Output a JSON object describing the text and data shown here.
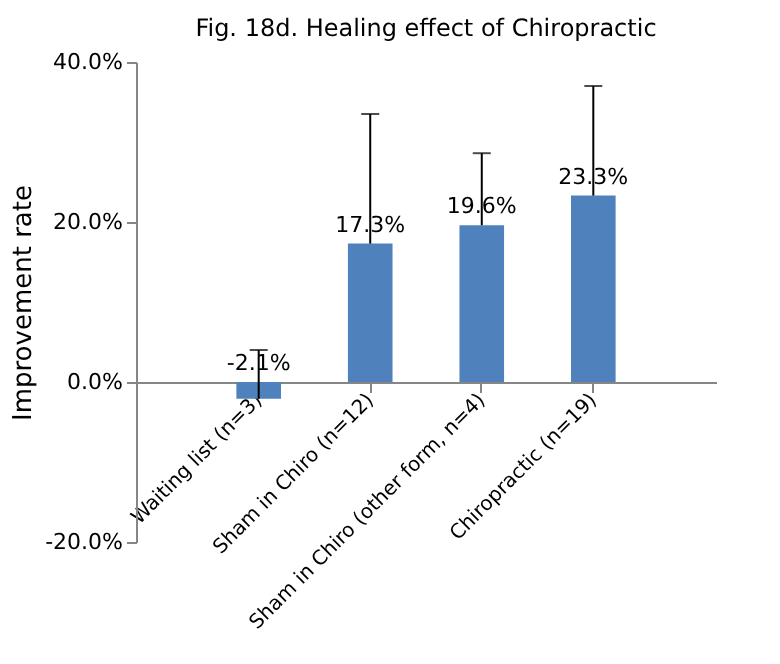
{
  "chart_data": {
    "type": "bar",
    "title": "Fig. 18d. Healing effect of Chiropractic",
    "ylabel": "Improvement rate",
    "categories": [
      "Waiting list (n=3)",
      "Sham in Chiro (n=12)",
      "Sham in Chiro  (other form, n=4)",
      "Chiropractic (n=19)"
    ],
    "values": [
      -2.1,
      17.3,
      19.6,
      23.3
    ],
    "color": "#4f81bd",
    "errors": [
      [
        -2.1,
        4.0
      ],
      [
        17.3,
        33.5
      ],
      [
        19.6,
        28.6
      ],
      [
        23.3,
        37.0
      ]
    ],
    "value_labels": [
      "-2.1%",
      "17.3%",
      "19.6%",
      "23.3%"
    ],
    "ylim": [
      -20,
      40
    ],
    "yticks": [
      {
        "value": -20,
        "label": "-20.0%"
      },
      {
        "value": 0,
        "label": "0.0%"
      },
      {
        "value": 20,
        "label": "20.0%"
      },
      {
        "value": 40,
        "label": "40.0%"
      }
    ],
    "grid": false
  }
}
